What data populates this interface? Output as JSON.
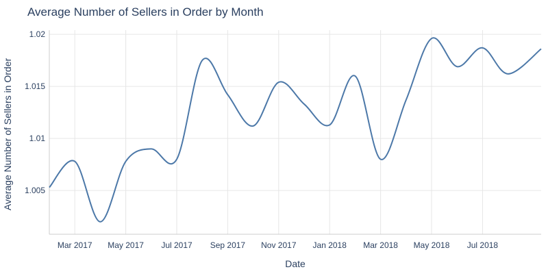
{
  "chart_data": {
    "type": "line",
    "title": "Average Number of Sellers in Order by Month",
    "xlabel": "Date",
    "ylabel": "Average Number of Sellers in Order",
    "x_tick_labels": [
      "Mar 2017",
      "May 2017",
      "Jul 2017",
      "Sep 2017",
      "Nov 2017",
      "Jan 2018",
      "Mar 2018",
      "May 2018",
      "Jul 2018"
    ],
    "y_tick_labels": [
      "1.005",
      "1.01",
      "1.015",
      "1.02"
    ],
    "y_ticks": [
      1.005,
      1.01,
      1.015,
      1.02
    ],
    "ylim": [
      1.0008,
      1.0204
    ],
    "x_range_months": [
      0,
      19.3
    ],
    "grid": true,
    "series": [
      {
        "name": "Average Number of Sellers in Order",
        "color": "#4c78a8",
        "x_months": [
          0,
          1,
          2,
          3,
          4,
          5,
          6,
          7,
          8,
          9,
          10,
          11,
          12,
          13,
          14,
          15,
          16,
          17,
          18,
          19.3
        ],
        "dates": [
          "2017-02",
          "2017-03",
          "2017-04",
          "2017-05",
          "2017-06",
          "2017-07",
          "2017-08",
          "2017-09",
          "2017-10",
          "2017-11",
          "2017-12",
          "2018-01",
          "2018-02",
          "2018-03",
          "2018-04",
          "2018-05",
          "2018-06",
          "2018-07",
          "2018-08",
          "2018-09"
        ],
        "values": [
          1.0053,
          1.0078,
          1.002,
          1.0078,
          1.009,
          1.008,
          1.0175,
          1.0142,
          1.0112,
          1.0154,
          1.0133,
          1.0113,
          1.016,
          1.008,
          1.0137,
          1.0196,
          1.0169,
          1.0187,
          1.0162,
          1.0186
        ]
      }
    ]
  }
}
